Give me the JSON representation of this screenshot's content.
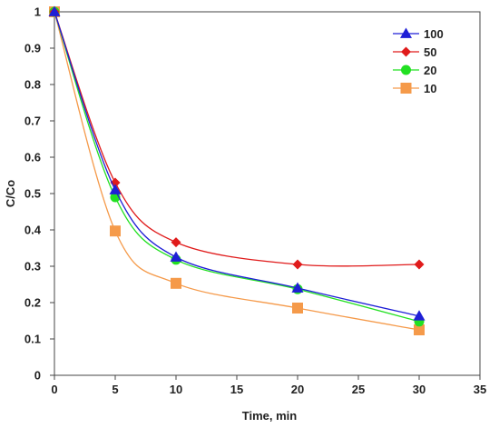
{
  "chart_data": {
    "type": "line",
    "xlabel": "Time, min",
    "ylabel": "C/Co",
    "xlim": [
      0,
      35
    ],
    "ylim": [
      0,
      1
    ],
    "xticks": [
      0,
      5,
      10,
      15,
      20,
      25,
      30,
      35
    ],
    "yticks": [
      0,
      0.1,
      0.2,
      0.3,
      0.4,
      0.5,
      0.6,
      0.7,
      0.8,
      0.9,
      1
    ],
    "xtick_labels": [
      "0",
      "5",
      "10",
      "15",
      "20",
      "25",
      "30",
      "35"
    ],
    "ytick_labels": [
      "0",
      "0.1",
      "0.2",
      "0.3",
      "0.4",
      "0.5",
      "0.6",
      "0.7",
      "0.8",
      "0.9",
      "1"
    ],
    "grid": false,
    "legend_position": "top-right",
    "x": [
      0,
      5,
      10,
      20,
      30
    ],
    "series": [
      {
        "name": "100",
        "values": [
          1,
          0.51,
          0.325,
          0.24,
          0.163
        ],
        "color": "#1f1fd6",
        "marker": "triangle"
      },
      {
        "name": "50",
        "values": [
          1,
          0.53,
          0.366,
          0.305,
          0.305
        ],
        "color": "#e01b1b",
        "marker": "diamond"
      },
      {
        "name": "20",
        "values": [
          1,
          0.49,
          0.318,
          0.237,
          0.148
        ],
        "color": "#22e022",
        "marker": "circle"
      },
      {
        "name": "10",
        "values": [
          1,
          0.397,
          0.253,
          0.185,
          0.125
        ],
        "color": "#f59a4a",
        "marker": "square"
      }
    ]
  }
}
